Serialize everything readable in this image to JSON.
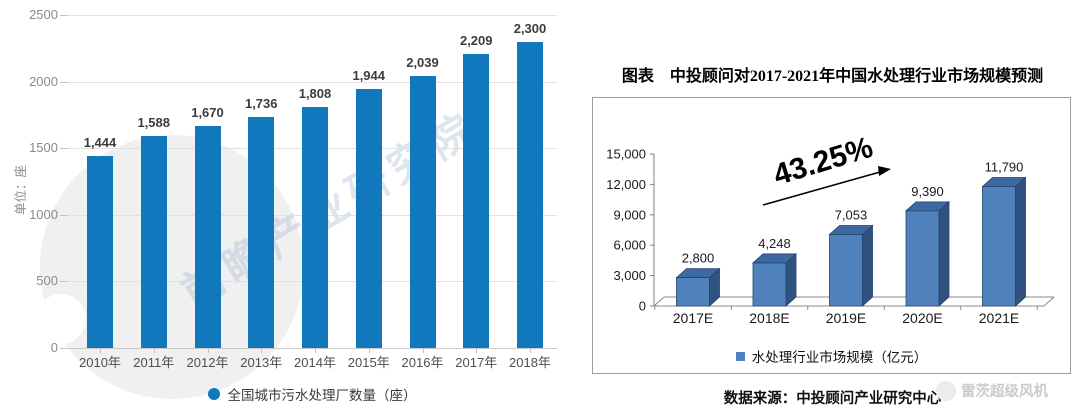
{
  "page": {
    "background": "#ffffff"
  },
  "footer_watermark": {
    "text": "雷茨超级风机"
  },
  "chart_data": [
    {
      "id": "left-bar-chart",
      "type": "bar",
      "title": "",
      "unit_label": "单位：座",
      "legend": "全国城市污水处理厂数量（座）",
      "watermark": "前瞻产业研究院",
      "categories": [
        "2010年",
        "2011年",
        "2012年",
        "2013年",
        "2014年",
        "2015年",
        "2016年",
        "2017年",
        "2018年"
      ],
      "values": [
        1444,
        1588,
        1670,
        1736,
        1808,
        1944,
        2039,
        2209,
        2300
      ],
      "value_labels": [
        "1,444",
        "1,588",
        "1,670",
        "1,736",
        "1,808",
        "1,944",
        "2,039",
        "2,209",
        "2,300"
      ],
      "ylim": [
        0,
        2500
      ],
      "yticks": [
        0,
        500,
        1000,
        1500,
        2000,
        2500
      ],
      "grid": true,
      "legend_position": "bottom",
      "bar_color": "#1278BE"
    },
    {
      "id": "right-3d-bar-chart",
      "type": "bar",
      "style": "3d",
      "title": "图表　中投顾问对2017-2021年中国水处理行业市场规模预测",
      "legend": "水处理行业市场规模（亿元）",
      "annotation": "43.25%",
      "source": "数据来源：中投顾问产业研究中心",
      "categories": [
        "2017E",
        "2018E",
        "2019E",
        "2020E",
        "2021E"
      ],
      "values": [
        2800,
        4248,
        7053,
        9390,
        11790
      ],
      "value_labels": [
        "2,800",
        "4,248",
        "7,053",
        "9,390",
        "11,790"
      ],
      "ylim": [
        0,
        15000
      ],
      "yticks": [
        0,
        3000,
        6000,
        9000,
        12000,
        15000
      ],
      "grid": false,
      "legend_position": "bottom",
      "colors": {
        "front": "#4F81BD",
        "top": "#3D69A3",
        "side": "#2F5280",
        "outline": "#24436B"
      }
    }
  ]
}
